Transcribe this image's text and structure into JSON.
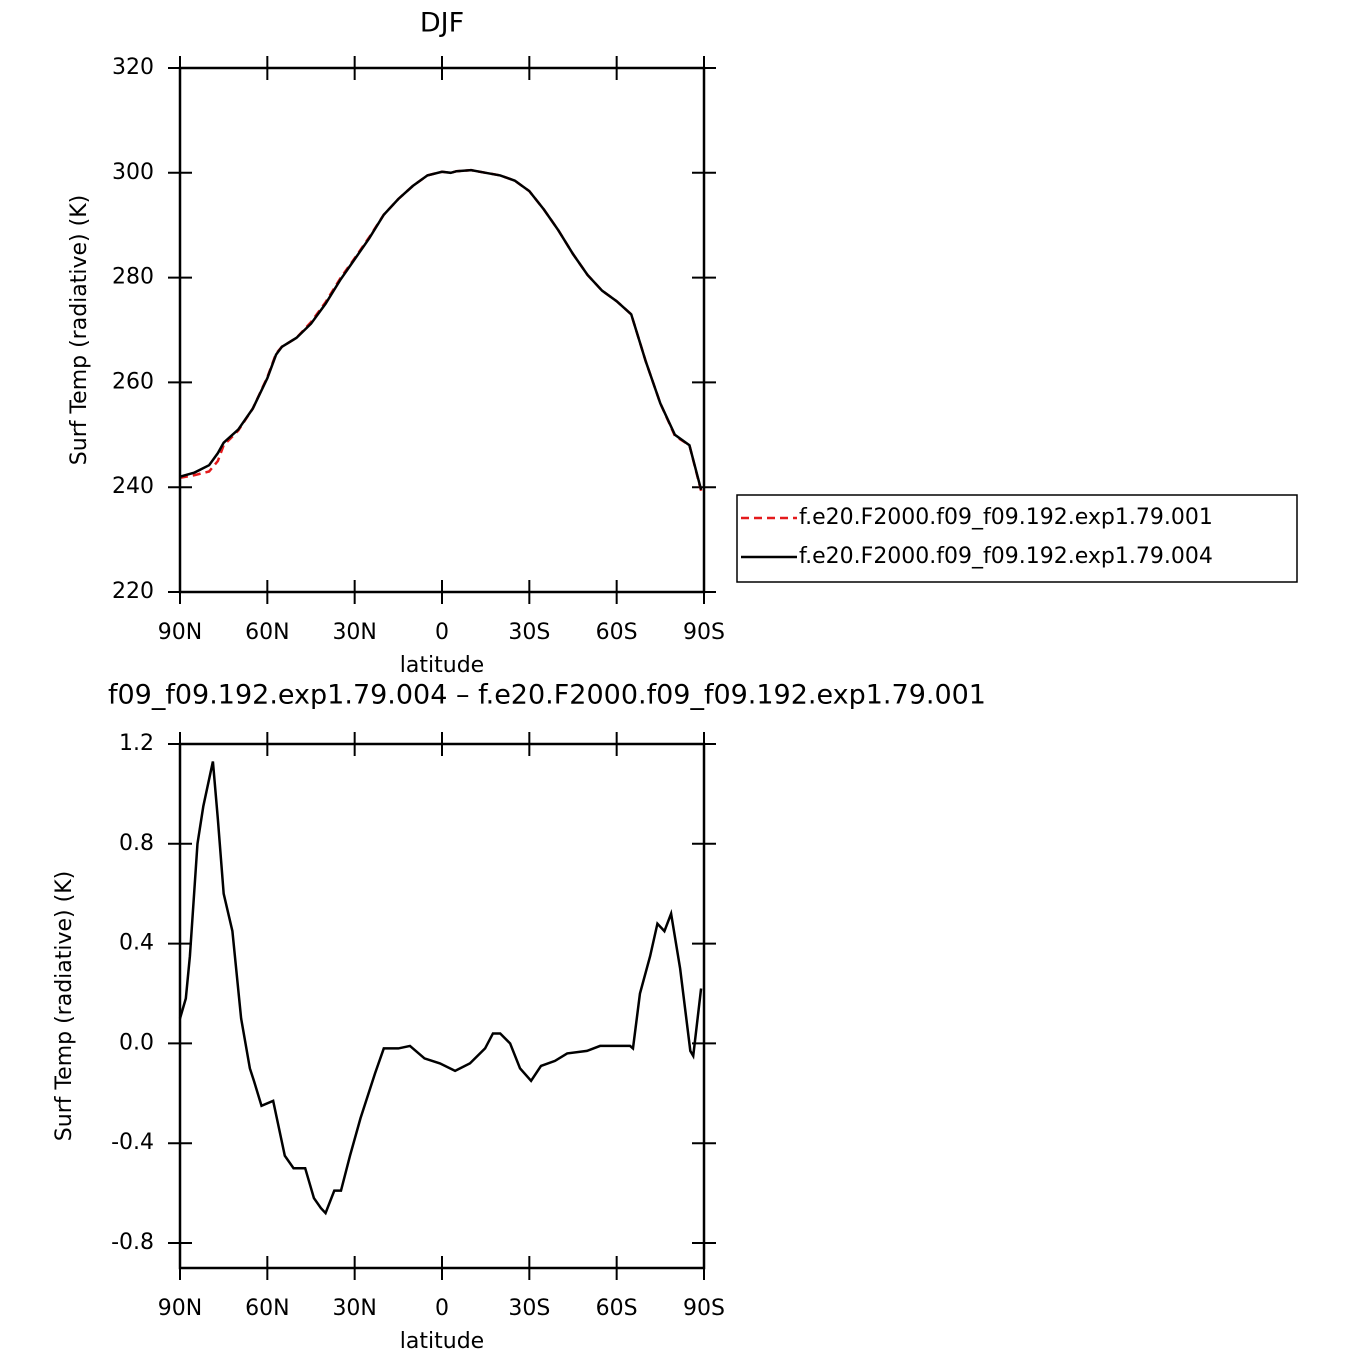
{
  "chart_data": [
    {
      "type": "line",
      "title": "DJF",
      "xlabel": "latitude",
      "ylabel": "Surf Temp (radiative) (K)",
      "x": [
        90,
        85,
        80,
        77,
        75,
        70,
        65,
        60,
        57,
        55,
        50,
        45,
        40,
        35,
        30,
        25,
        20,
        15,
        10,
        5,
        0,
        -3,
        -5,
        -10,
        -15,
        -20,
        -25,
        -30,
        -35,
        -40,
        -45,
        -50,
        -55,
        -60,
        -65,
        -70,
        -75,
        -80,
        -85,
        -89
      ],
      "series": [
        {
          "name": "f.e20.F2000.f09_f09.192.exp1.79.001",
          "color": "#e41a1c",
          "line_style": "dashed",
          "values": [
            241.8,
            242.3,
            243.0,
            245.0,
            248.0,
            250.8,
            255.0,
            261.0,
            265.5,
            266.8,
            268.5,
            271.5,
            275.3,
            279.8,
            283.7,
            287.7,
            292.0,
            295.0,
            297.5,
            299.5,
            300.2,
            300.0,
            300.3,
            300.5,
            300.0,
            299.5,
            298.5,
            296.5,
            293.0,
            289.0,
            284.5,
            280.5,
            277.5,
            275.5,
            273.0,
            264.0,
            256.0,
            249.8,
            248.0,
            239.3
          ]
        },
        {
          "name": "f.e20.F2000.f09_f09.192.exp1.79.004",
          "color": "#000000",
          "line_style": "solid",
          "values": [
            242.0,
            242.8,
            244.2,
            246.5,
            248.5,
            251.0,
            255.0,
            260.8,
            265.3,
            266.8,
            268.5,
            271.2,
            275.0,
            279.5,
            283.5,
            287.5,
            292.0,
            295.0,
            297.5,
            299.5,
            300.2,
            300.0,
            300.3,
            300.5,
            300.0,
            299.5,
            298.5,
            296.5,
            293.0,
            289.0,
            284.5,
            280.5,
            277.5,
            275.5,
            273.0,
            264.0,
            256.0,
            250.0,
            248.0,
            239.5
          ]
        }
      ],
      "xlim": [
        90,
        -90
      ],
      "xticks": [
        {
          "value": 90,
          "label": "90N"
        },
        {
          "value": 60,
          "label": "60N"
        },
        {
          "value": 30,
          "label": "30N"
        },
        0,
        {
          "value": -30,
          "label": "30S"
        },
        {
          "value": -60,
          "label": "60S"
        },
        {
          "value": -90,
          "label": "90S"
        }
      ],
      "ylim": [
        220,
        320
      ],
      "yticks": [
        220,
        240,
        260,
        280,
        300,
        320
      ],
      "legend": "right"
    },
    {
      "type": "line",
      "title": "f09_f09.192.exp1.79.004 – f.e20.F2000.f09_f09.192.exp1.79.001",
      "xlabel": "latitude",
      "ylabel": "Surf Temp (radiative) (K)",
      "x": [
        90,
        88,
        86.6,
        84,
        82,
        78.7,
        77,
        75,
        72,
        69,
        66,
        64.6,
        62,
        58,
        54,
        51,
        47,
        44,
        41.6,
        40,
        37,
        34.7,
        31.6,
        28,
        23,
        20,
        15,
        11,
        6,
        0.7,
        -4.5,
        -9.6,
        -14.8,
        -17.5,
        -20,
        -23.4,
        -26.8,
        -30.6,
        -34,
        -38.8,
        -43,
        -49.8,
        -54.3,
        -64.6,
        -65.6,
        -68,
        -71.5,
        -74,
        -76.4,
        -78.7,
        -81.8,
        -85.3,
        -86.3,
        -89
      ],
      "series": [
        {
          "color": "#000000",
          "line_style": "solid",
          "values": [
            0.1,
            0.18,
            0.35,
            0.8,
            0.95,
            1.13,
            0.9,
            0.6,
            0.45,
            0.1,
            -0.1,
            -0.15,
            -0.25,
            -0.23,
            -0.45,
            -0.5,
            -0.5,
            -0.62,
            -0.66,
            -0.68,
            -0.59,
            -0.59,
            -0.45,
            -0.3,
            -0.12,
            -0.02,
            -0.02,
            -0.01,
            -0.06,
            -0.08,
            -0.11,
            -0.08,
            -0.02,
            0.04,
            0.04,
            0.0,
            -0.1,
            -0.15,
            -0.09,
            -0.07,
            -0.04,
            -0.03,
            -0.01,
            -0.01,
            -0.02,
            0.2,
            0.35,
            0.48,
            0.45,
            0.52,
            0.3,
            -0.03,
            -0.05,
            0.22
          ]
        }
      ],
      "xlim": [
        90,
        -90
      ],
      "xticks": [
        {
          "value": 90,
          "label": "90N"
        },
        {
          "value": 60,
          "label": "60N"
        },
        {
          "value": 30,
          "label": "30N"
        },
        0,
        {
          "value": -30,
          "label": "30S"
        },
        {
          "value": -60,
          "label": "60S"
        },
        {
          "value": -90,
          "label": "90S"
        }
      ],
      "ylim": [
        -0.9,
        1.2
      ],
      "yticks": [
        -0.8,
        -0.4,
        {
          "value": 0,
          "label": "0.0"
        },
        0.4,
        0.8,
        1.2
      ]
    }
  ]
}
